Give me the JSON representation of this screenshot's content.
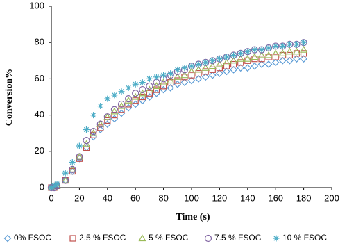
{
  "chart_data": {
    "type": "scatter",
    "x_label": "Time (s)",
    "y_label": "Conversion%",
    "x": [
      0,
      2,
      4,
      10,
      15,
      20,
      25,
      30,
      35,
      40,
      45,
      50,
      55,
      60,
      65,
      70,
      75,
      80,
      85,
      90,
      95,
      100,
      105,
      110,
      115,
      120,
      125,
      130,
      135,
      140,
      145,
      150,
      155,
      160,
      165,
      170,
      175,
      180
    ],
    "series": [
      {
        "name": "0% FSOC",
        "color": "#5b9bd5",
        "marker": "diamond",
        "values": [
          0,
          0,
          1,
          4,
          9,
          16,
          22,
          28,
          32,
          35,
          38,
          41,
          44,
          46,
          48,
          50,
          52,
          54,
          55,
          57,
          58,
          59,
          60,
          61,
          62,
          63,
          64,
          65,
          66,
          66,
          67,
          68,
          68,
          69,
          70,
          70,
          71,
          71
        ]
      },
      {
        "name": "2.5 % FSOC",
        "color": "#c0504d",
        "marker": "square",
        "values": [
          0,
          0,
          1,
          4,
          9,
          16,
          22,
          29,
          33,
          37,
          40,
          43,
          46,
          48,
          50,
          52,
          54,
          56,
          58,
          59,
          61,
          62,
          63,
          64,
          65,
          66,
          67,
          68,
          69,
          70,
          71,
          71,
          72,
          72,
          73,
          73,
          74,
          74
        ]
      },
      {
        "name": "5 % FSOC",
        "color": "#9bbb59",
        "marker": "triangle",
        "values": [
          0,
          0,
          1,
          4,
          10,
          17,
          24,
          30,
          35,
          39,
          42,
          45,
          48,
          50,
          52,
          54,
          56,
          58,
          59,
          61,
          62,
          64,
          65,
          66,
          67,
          68,
          69,
          70,
          71,
          71,
          72,
          73,
          73,
          74,
          74,
          75,
          75,
          76
        ]
      },
      {
        "name": "7.5 % FSOC",
        "color": "#8064a2",
        "marker": "circle",
        "values": [
          0,
          0,
          1,
          4,
          10,
          17,
          26,
          31,
          35,
          39,
          43,
          46,
          49,
          52,
          54,
          56,
          58,
          60,
          62,
          64,
          65,
          67,
          68,
          69,
          70,
          71,
          72,
          73,
          74,
          75,
          76,
          76,
          77,
          78,
          78,
          79,
          79,
          80
        ]
      },
      {
        "name": "10 % FSOC",
        "color": "#4bacc6",
        "marker": "star",
        "values": [
          0,
          1,
          2,
          8,
          14,
          23,
          32,
          40,
          45,
          49,
          51,
          53,
          55,
          57,
          58,
          60,
          61,
          62,
          63,
          65,
          66,
          67,
          68,
          69,
          70,
          71,
          72,
          73,
          74,
          75,
          76,
          76,
          77,
          78,
          78,
          79,
          79,
          80
        ]
      }
    ],
    "xlim": [
      0,
      200
    ],
    "xticks": [
      0,
      20,
      40,
      60,
      80,
      100,
      120,
      140,
      160,
      180,
      200
    ],
    "ylim": [
      0,
      100
    ],
    "yticks": [
      0,
      20,
      40,
      60,
      80,
      100
    ],
    "grid": false,
    "legend": "bottom"
  }
}
